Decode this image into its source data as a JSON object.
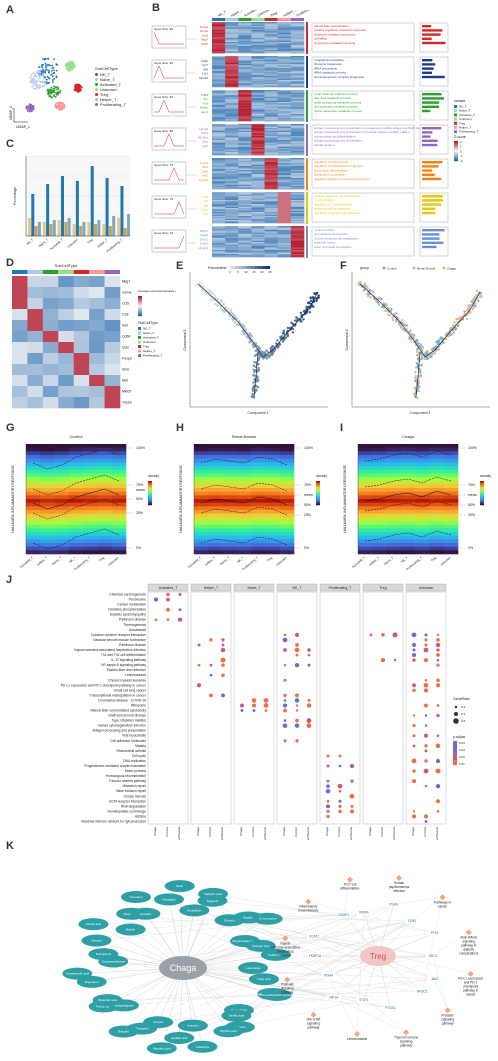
{
  "labels": {
    "A": "A",
    "B": "B",
    "C": "C",
    "D": "D",
    "E": "E",
    "F": "F",
    "G": "G",
    "H": "H",
    "I": "I",
    "J": "J",
    "K": "K"
  },
  "panel_a": {
    "legend_title": "SubCellType",
    "legend": [
      "NK_T",
      "Naive_T",
      "Activated_T",
      "Unknown",
      "Treg",
      "Helper_T",
      "Proliferating_T"
    ],
    "colors": [
      "#1f77b4",
      "#aec7e8",
      "#2ca02c",
      "#98df8a",
      "#d62728",
      "#ff9896",
      "#9467bd"
    ],
    "axis1": "UMAP_1",
    "axis2": "UMAP_2"
  },
  "panel_b": {
    "columns": [
      "NK_T",
      "Naive_T",
      "Activated_T",
      "Unknown",
      "Treg",
      "Helper_T",
      "Proliferating_T"
    ],
    "clusters": [
      {
        "name": "Gene Size: 90",
        "genes": [
          "Gzma",
          "Gzmb",
          "Ccl5",
          "Nkg7",
          "Klrd1"
        ],
        "terms": [
          "natural killer cell activation",
          "positive regulation of defense response",
          "leukocyte mediated cytotoxicity",
          "cell killing",
          "lymphocyte mediated immunity"
        ],
        "color": "#d62728"
      },
      {
        "name": "Gene Size: 90",
        "genes": [
          "Cd3e",
          "Ccr7",
          "Sell",
          "Lef1",
          "Rps20"
        ],
        "terms": [
          "cytoplasmic translation",
          "ribosome biogenesis",
          "rRNA processing",
          "rRNA metabolic process",
          "ribonucleoprotein complex biogenesis"
        ],
        "color": "#1f3c88"
      },
      {
        "name": "Gene Size: 84",
        "genes": [
          "Cd69",
          "Jun",
          "Fos",
          "Nr4a1",
          "Egr1"
        ],
        "terms": [
          "small molecule catabolic process",
          "fatty acid metabolic process",
          "sulfur compound metabolic process",
          "ribonucleotide metabolic process",
          "ribose phosphate metabolic process"
        ],
        "color": "#2ca02c"
      },
      {
        "name": "Gene Size: 88",
        "genes": [
          "H2-Aa",
          "Cd74",
          "H2-Ab1",
          "Ctss",
          "Lyz2"
        ],
        "terms": [
          "antigen processing and presentation of exogenous peptide antigen via MHC class II",
          "antigen processing and presentation of peptide antigen via MHC class II",
          "mononuclear cell differentiation",
          "antigen processing and presentation",
          "peptide antigen"
        ],
        "color": "#9467bd"
      },
      {
        "name": "Gene Size: 79",
        "genes": [
          "Foxp3",
          "Il2ra",
          "Ctla4",
          "Ikzf2",
          "Tnfrsf4"
        ],
        "terms": [
          "regulation of hemopoiesis",
          "regulation of interleukin-2 production",
          "lymphocyte differentiation",
          "interleukin-2 production",
          "negative regulation of cytokine production"
        ],
        "color": "#ff7f0e"
      },
      {
        "name": "Gene Size: 75",
        "genes": [
          "Cd4",
          "Il7r",
          "Maf",
          "Rora",
          "Icos"
        ],
        "terms": [
          "positive regulation of cell adhesion",
          "T cell activation",
          "regulation of T cell activation",
          "leukocyte cell-cell adhesion",
          "regulation of lymphocyte activation"
        ],
        "color": "#e6c700"
      },
      {
        "name": "Gene Size: 72",
        "genes": [
          "Mki67",
          "Top2a",
          "Stmn1",
          "Tubb5",
          "Hmgb2"
        ],
        "terms": [
          "nuclear division",
          "chromosome segregation",
          "nuclear chromosome segregation",
          "organelle fission",
          "sister chromatid segregation"
        ],
        "color": "#6b8fd6"
      }
    ],
    "legend_sample": "sample",
    "legend_z": "Z-score",
    "z_ticks": [
      "2",
      "1",
      "0",
      "-1",
      "-2"
    ]
  },
  "panel_c": {
    "title": "",
    "ylabel": "Percentage"
  },
  "panel_d": {
    "title": "SubCellType",
    "genes": [
      "Nkg7",
      "Gzma",
      "Ccl5",
      "Cd3",
      "Sell",
      "Cd69",
      "Ctss",
      "Foxp3",
      "Il2ra",
      "Maf",
      "Mki67",
      "Top2a"
    ],
    "legend1": "Average expression(scaled count)",
    "legend2": "SubCellType",
    "legend2_items": [
      "NK_T",
      "Naive_T",
      "Activated_T",
      "Unknown",
      "Treg",
      "Helper_T",
      "Proliferating_T"
    ]
  },
  "panel_e": {
    "legend": "Pseudotime",
    "ticks": [
      "0",
      "5",
      "10",
      "15",
      "20",
      "25"
    ],
    "xlabel": "Component 1",
    "ylabel": "Component 2"
  },
  "panel_f": {
    "legend_title": "group",
    "groups": [
      "Control",
      "Renal fibrosis",
      "Chaga"
    ],
    "xlabel": "Component 1",
    "ylabel": "Component 2"
  },
  "panel_g": {
    "title": "Control",
    "ylabel": "HALLMARK-INFLAMMATORY-RESPONSE",
    "legend": "density",
    "pct": [
      "100%",
      "75%",
      "50%",
      "25%",
      "0%"
    ],
    "mean": "mean"
  },
  "panel_h": {
    "title": "Renal fibrosis",
    "ylabel": "HALLMARK-INFLAMMATORY-RESPONSE",
    "legend": "density",
    "pct": [
      "100%",
      "75%",
      "mean",
      "50%",
      "25%",
      "0%"
    ]
  },
  "panel_i": {
    "title": "Chaga",
    "ylabel": "HALLMARK-INFLAMMATORY-RESPONSE",
    "legend": "density",
    "pct": [
      "100%",
      "75%",
      "mean",
      "50%",
      "25%",
      "0%"
    ]
  },
  "panel_j": {
    "facets": [
      "Activated_T",
      "Helper_T",
      "Naive_T",
      "NK_T",
      "Proliferating_T",
      "Treg",
      "Unknown"
    ],
    "pathways": [
      "Chemical carcinogenesis",
      "Peroxisome",
      "Carbon metabolism",
      "Oxidative phosphorylation",
      "Diabetic cardiomyopathy",
      "Parkinson disease",
      "Thermogenesis",
      "Amoebiasis",
      "Cytokine-cytokine receptor interaction",
      "Vascular smooth muscle contraction",
      "Parkinson disease",
      "Kaposi sarcoma-associated herpesvirus infection",
      "Th1 and Th2 cell differentiation",
      "IL-17 signaling pathway",
      "NF-kappa B signaling pathway",
      "Epstein-Barr virus infection",
      "Leishmaniasis",
      "Chronic myeloid leukemia",
      "PD-L1 expression and PD-1 checkpoint pathway in cancer",
      "Small cell lung cancer",
      "Transcriptional misregulation in cancer",
      "Coronavirus disease - COVID-19",
      "Ribosome",
      "Natural killer cell mediated cytotoxicity",
      "Graft-versus-host disease",
      "Type I diabetes mellitus",
      "Human cytomegalovirus infection",
      "Antigen processing and presentation",
      "Viral myocarditis",
      "Cell adhesion molecules",
      "Malaria",
      "Rheumatoid arthritis",
      "Cell cycle",
      "DNA replication",
      "Progesterone-mediated oocyte maturation",
      "Motor proteins",
      "Homologous recombination",
      "Fanconi anemia pathway",
      "Mismatch repair",
      "Base excision repair",
      "Oocyte meiosis",
      "ECM-receptor interaction",
      "RNA degradation",
      "Hematopoietic cell lineage",
      "Asthma",
      "Intestinal immune network for IgA production"
    ],
    "groups": [
      "Chaga",
      "Control",
      "Renal fibrosis"
    ],
    "legend_size": "GeneRatio",
    "size_ticks": [
      "0.2",
      "0.4",
      "0.6"
    ],
    "legend_color": "p.adjust",
    "color_ticks": [
      "0.04",
      "0.03",
      "0.02",
      "0.01"
    ]
  },
  "panel_k": {
    "center_left": "Chaga",
    "center_right": "Treg",
    "compounds": [
      "Lanceolate",
      "Fatty acid",
      "Isodeoxyelephantopin",
      "5-O-methylvisamminoside",
      "Peucedanin",
      "Sesamin",
      "Vanillic acid",
      "Myristic acid",
      "Catechins",
      "Acacetin",
      "Quillaic acid",
      "Nicotinic acid",
      "Chrysin",
      "Pinosylvin",
      "Baicalin",
      "Ferulic acid",
      "Isoliquiritigenin",
      "Oleanolic acid",
      "Ergosterol",
      "Trametenolic acid",
      "Cryptotanshinone",
      "Kaempferol",
      "Alnusiin",
      "Ursolic acid",
      "Betulin",
      "Abietic acid",
      "Coumarin",
      "Inotodiol",
      "Astragalin",
      "Rutin",
      "Scutellarin",
      "Apigenin",
      "Salicylic acid",
      "Emodin",
      "Hispidin",
      "(+)-Lycopene",
      "Dihydrokaempferol",
      "Syringic acid",
      "Caffeic acid"
    ],
    "pathways": [
      "AGE-RAGE signaling pathway in diabetic complications",
      "PD-L1 expression and PD-1 checkpoint pathway in cancer",
      "Prolactin signaling pathway",
      "Thyroid hormone signaling pathway",
      "Leishmaniasis",
      "JAK-STAT signaling pathway",
      "PI3K-Akt signaling pathway",
      "Kaposi sarcoma-associated herpesvirus infection",
      "Inflammatory bowel disease",
      "Th17 cell differentiation",
      "Human papillomavirus infection",
      "Pathways in cancer"
    ],
    "genes": [
      "ODC1",
      "JAK2",
      "NR3C1",
      "PTGS2",
      "STAT1",
      "HIF1A",
      "ITGA4",
      "FKBP1A",
      "CCAT1",
      "DUSP1",
      "RORA",
      "ITGAV",
      "CDK1",
      "PTK1"
    ]
  }
}
